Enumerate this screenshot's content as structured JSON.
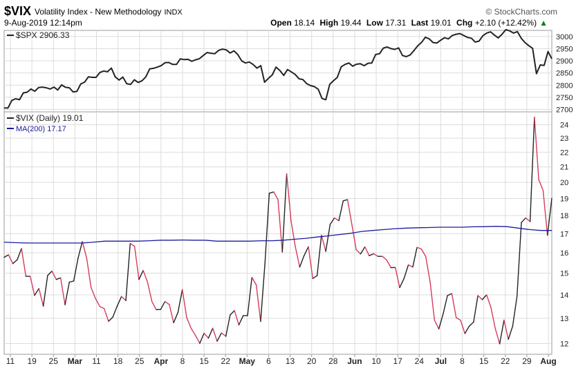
{
  "header": {
    "symbol": "$VIX",
    "description": "Volatility Index - New Methodology",
    "exchange": "INDX",
    "brand": "© StockCharts.com",
    "date": "9-Aug-2019 12:14pm",
    "open_label": "Open",
    "open": "18.14",
    "high_label": "High",
    "high": "19.44",
    "low_label": "Low",
    "low": "17.31",
    "last_label": "Last",
    "last": "19.01",
    "chg_label": "Chg",
    "chg": "+2.10 (+12.42%)",
    "chg_arrow": "▲"
  },
  "colors": {
    "spx": "#222222",
    "vix_up": "#222222",
    "vix_down": "#d63a5a",
    "ma": "#1a1a9c",
    "grid": "#dcdcdc"
  },
  "chart_data": [
    {
      "type": "line",
      "legend": "$SPX 2906.33",
      "yticks": [
        2700,
        2750,
        2800,
        2850,
        2900,
        2950,
        3000
      ],
      "ylim": [
        2690,
        3025
      ],
      "series": [
        {
          "name": "$SPX",
          "values": [
            2706,
            2706,
            2737,
            2744,
            2740,
            2768,
            2771,
            2784,
            2775,
            2790,
            2792,
            2789,
            2784,
            2792,
            2780,
            2801,
            2791,
            2789,
            2772,
            2774,
            2805,
            2812,
            2834,
            2832,
            2832,
            2852,
            2858,
            2855,
            2870,
            2834,
            2821,
            2833,
            2806,
            2803,
            2822,
            2811,
            2818,
            2834,
            2867,
            2869,
            2874,
            2880,
            2892,
            2893,
            2885,
            2885,
            2908,
            2905,
            2906,
            2898,
            2904,
            2909,
            2922,
            2934,
            2931,
            2929,
            2943,
            2948,
            2945,
            2932,
            2941,
            2926,
            2900,
            2891,
            2895,
            2885,
            2870,
            2880,
            2812,
            2828,
            2842,
            2874,
            2860,
            2840,
            2864,
            2854,
            2844,
            2826,
            2823,
            2806,
            2798,
            2794,
            2783,
            2745,
            2740,
            2803,
            2818,
            2832,
            2875,
            2885,
            2891,
            2878,
            2886,
            2888,
            2880,
            2890,
            2891,
            2926,
            2929,
            2952,
            2957,
            2950,
            2947,
            2953,
            2922,
            2917,
            2924,
            2942,
            2962,
            2976,
            2997,
            2990,
            2975,
            2973,
            2985,
            2995,
            2990,
            3004,
            3009,
            3012,
            3004,
            2996,
            2993,
            2977,
            2981,
            3003,
            3014,
            3019,
            3006,
            2994,
            3009,
            3028,
            3023,
            3014,
            3020,
            2993,
            2975,
            2962,
            2951,
            2847,
            2883,
            2881,
            2938,
            2908
          ]
        }
      ]
    },
    {
      "type": "line",
      "xticks": [
        "11",
        "19",
        "25",
        "Mar",
        "11",
        "18",
        "25",
        "Apr",
        "8",
        "15",
        "22",
        "May",
        "6",
        "13",
        "20",
        "28",
        "Jun",
        "10",
        "17",
        "24",
        "Jul",
        "8",
        "15",
        "22",
        "29",
        "Aug"
      ],
      "xticks_bold": [
        "Mar",
        "Apr",
        "May",
        "Jun",
        "Jul",
        "Aug"
      ],
      "yticks": [
        12,
        13,
        14,
        15,
        16,
        17,
        18,
        19,
        20,
        21,
        22,
        23,
        24
      ],
      "ylim": [
        11.6,
        25.0
      ],
      "log_scale": true,
      "legend": [
        {
          "label": "$VIX (Daily) 19.01"
        },
        {
          "label": "MA(200) 17.17"
        }
      ],
      "series": [
        {
          "name": "$VIX (Daily)",
          "values": [
            15.77,
            15.9,
            15.46,
            15.65,
            16.22,
            14.85,
            14.85,
            13.98,
            14.29,
            13.51,
            14.89,
            15.1,
            14.7,
            14.78,
            13.57,
            14.58,
            14.63,
            15.73,
            16.58,
            15.72,
            14.33,
            13.85,
            13.5,
            13.41,
            12.88,
            13.05,
            13.51,
            13.93,
            13.75,
            16.48,
            16.33,
            14.7,
            15.13,
            14.57,
            13.71,
            13.36,
            13.37,
            13.71,
            13.58,
            12.82,
            13.25,
            14.24,
            13.03,
            12.6,
            12.32,
            12.01,
            12.4,
            12.21,
            12.6,
            12.09,
            12.41,
            12.28,
            13.14,
            13.32,
            12.73,
            13.11,
            13.11,
            14.8,
            14.45,
            12.87,
            15.44,
            19.32,
            19.4,
            18.94,
            16.04,
            20.55,
            17.71,
            16.31,
            15.29,
            15.85,
            16.31,
            14.75,
            14.88,
            16.92,
            16.07,
            17.5,
            17.87,
            17.71,
            18.86,
            18.93,
            17.49,
            16.16,
            15.94,
            16.3,
            15.85,
            15.95,
            15.82,
            15.82,
            15.64,
            15.26,
            15.27,
            14.33,
            14.75,
            15.4,
            15.29,
            16.28,
            16.19,
            15.81,
            14.6,
            12.93,
            12.57,
            13.19,
            13.97,
            14.06,
            13.03,
            12.92,
            12.39,
            12.68,
            12.85,
            13.97,
            13.79,
            14.0,
            13.45,
            12.58,
            11.99,
            12.93,
            12.16,
            12.68,
            13.94,
            17.61,
            17.87,
            17.66,
            24.59,
            20.17,
            19.49,
            16.91,
            19.01
          ]
        },
        {
          "name": "MA(200)",
          "values": [
            16.55,
            16.52,
            16.5,
            16.5,
            16.5,
            16.5,
            16.5,
            16.5,
            16.55,
            16.6,
            16.6,
            16.6,
            16.6,
            16.62,
            16.65,
            16.65,
            16.66,
            16.65,
            16.65,
            16.6,
            16.6,
            16.6,
            16.6,
            16.62,
            16.62,
            16.65,
            16.7,
            16.75,
            16.82,
            16.88,
            16.95,
            17.02,
            17.12,
            17.17,
            17.22,
            17.27,
            17.3,
            17.32,
            17.33,
            17.35,
            17.35,
            17.35,
            17.37,
            17.38,
            17.4,
            17.38,
            17.3,
            17.22,
            17.17,
            17.17
          ]
        }
      ]
    }
  ]
}
